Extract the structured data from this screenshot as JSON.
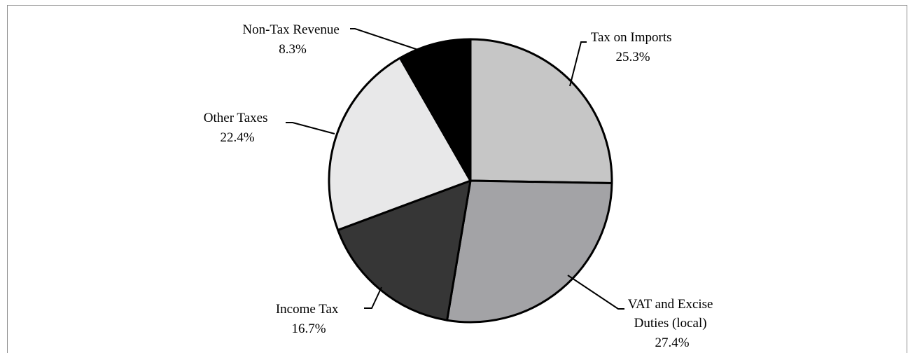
{
  "chart_data": {
    "type": "pie",
    "title": "",
    "slices": [
      {
        "label": [
          "Tax on Imports"
        ],
        "percent_label": "25.3%",
        "value": 25.3,
        "color": "#c6c6c6"
      },
      {
        "label": [
          "VAT and Excise",
          "Duties (local)"
        ],
        "percent_label": "27.4%",
        "value": 27.4,
        "color": "#a3a3a6"
      },
      {
        "label": [
          "Income Tax"
        ],
        "percent_label": "16.7%",
        "value": 16.7,
        "color": "#363636"
      },
      {
        "label": [
          "Other Taxes"
        ],
        "percent_label": "22.4%",
        "value": 22.4,
        "color": "#e8e8e9"
      },
      {
        "label": [
          "Non-Tax Revenue"
        ],
        "percent_label": "8.3%",
        "value": 8.3,
        "color": "#000000"
      }
    ],
    "start_angle_deg": 0,
    "direction": "clockwise",
    "legend": "none"
  }
}
